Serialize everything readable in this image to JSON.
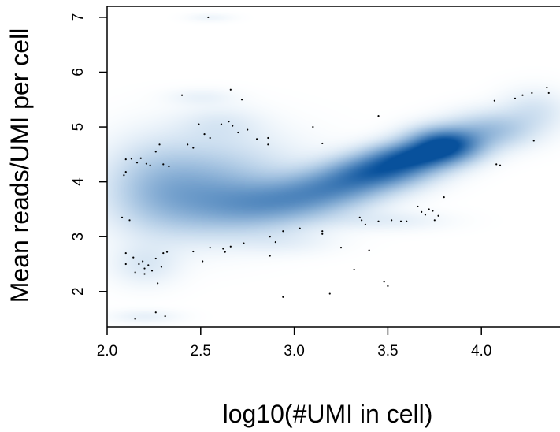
{
  "chart_data": {
    "type": "scatter",
    "title": "",
    "xlabel": "log10(#UMI in cell)",
    "ylabel": "Mean reads/UMI per cell",
    "xlim": [
      2.0,
      4.42
    ],
    "ylim": [
      1.35,
      7.2
    ],
    "x_ticks": [
      "2.0",
      "2.5",
      "3.0",
      "3.5",
      "4.0"
    ],
    "y_ticks": [
      "2",
      "3",
      "4",
      "5",
      "6",
      "7"
    ],
    "density_color": "#08519c",
    "point_color": "#000000",
    "density_kernels": [
      {
        "x": 3.8,
        "y": 4.68,
        "w": 1.0,
        "sx": 0.13,
        "sy": 0.2
      },
      {
        "x": 3.62,
        "y": 4.45,
        "w": 0.75,
        "sx": 0.15,
        "sy": 0.18
      },
      {
        "x": 3.45,
        "y": 4.2,
        "w": 0.7,
        "sx": 0.17,
        "sy": 0.2
      },
      {
        "x": 3.25,
        "y": 3.95,
        "w": 0.45,
        "sx": 0.18,
        "sy": 0.22
      },
      {
        "x": 3.05,
        "y": 3.7,
        "w": 0.35,
        "sx": 0.2,
        "sy": 0.25
      },
      {
        "x": 2.8,
        "y": 3.55,
        "w": 0.3,
        "sx": 0.22,
        "sy": 0.3
      },
      {
        "x": 2.5,
        "y": 3.7,
        "w": 0.33,
        "sx": 0.25,
        "sy": 0.45
      },
      {
        "x": 2.25,
        "y": 3.9,
        "w": 0.18,
        "sx": 0.18,
        "sy": 0.55
      },
      {
        "x": 2.6,
        "y": 4.3,
        "w": 0.14,
        "sx": 0.3,
        "sy": 0.45
      },
      {
        "x": 4.05,
        "y": 4.95,
        "w": 0.3,
        "sx": 0.15,
        "sy": 0.22
      },
      {
        "x": 4.28,
        "y": 5.3,
        "w": 0.12,
        "sx": 0.12,
        "sy": 0.25
      },
      {
        "x": 2.6,
        "y": 5.05,
        "w": 0.08,
        "sx": 0.15,
        "sy": 0.22
      },
      {
        "x": 2.5,
        "y": 5.55,
        "w": 0.05,
        "sx": 0.12,
        "sy": 0.1
      },
      {
        "x": 2.2,
        "y": 2.5,
        "w": 0.1,
        "sx": 0.12,
        "sy": 0.25
      },
      {
        "x": 2.2,
        "y": 1.55,
        "w": 0.06,
        "sx": 0.12,
        "sy": 0.08
      },
      {
        "x": 2.55,
        "y": 7.0,
        "w": 0.04,
        "sx": 0.08,
        "sy": 0.05
      },
      {
        "x": 3.5,
        "y": 3.3,
        "w": 0.07,
        "sx": 0.2,
        "sy": 0.12
      },
      {
        "x": 2.95,
        "y": 2.9,
        "w": 0.05,
        "sx": 0.18,
        "sy": 0.15
      }
    ],
    "points": [
      [
        2.54,
        7.0
      ],
      [
        2.66,
        5.68
      ],
      [
        2.72,
        5.5
      ],
      [
        2.4,
        5.58
      ],
      [
        2.49,
        5.05
      ],
      [
        2.52,
        4.87
      ],
      [
        2.55,
        4.8
      ],
      [
        2.61,
        5.05
      ],
      [
        2.65,
        5.1
      ],
      [
        2.67,
        5.02
      ],
      [
        2.75,
        4.95
      ],
      [
        2.7,
        4.9
      ],
      [
        2.8,
        4.78
      ],
      [
        2.86,
        4.8
      ],
      [
        2.86,
        4.68
      ],
      [
        2.43,
        4.68
      ],
      [
        2.46,
        4.62
      ],
      [
        2.28,
        4.68
      ],
      [
        2.26,
        4.55
      ],
      [
        2.13,
        4.42
      ],
      [
        2.18,
        4.43
      ],
      [
        2.21,
        4.33
      ],
      [
        2.16,
        4.35
      ],
      [
        2.23,
        4.3
      ],
      [
        2.1,
        4.41
      ],
      [
        2.1,
        4.18
      ],
      [
        2.09,
        4.12
      ],
      [
        2.3,
        4.32
      ],
      [
        2.33,
        4.28
      ],
      [
        2.08,
        3.35
      ],
      [
        2.12,
        3.3
      ],
      [
        2.1,
        2.7
      ],
      [
        2.14,
        2.62
      ],
      [
        2.19,
        2.55
      ],
      [
        2.17,
        2.5
      ],
      [
        2.22,
        2.48
      ],
      [
        2.2,
        2.42
      ],
      [
        2.24,
        2.38
      ],
      [
        2.26,
        2.6
      ],
      [
        2.3,
        2.7
      ],
      [
        2.32,
        2.72
      ],
      [
        2.29,
        2.45
      ],
      [
        2.27,
        2.15
      ],
      [
        2.1,
        2.5
      ],
      [
        2.15,
        2.35
      ],
      [
        2.2,
        2.32
      ],
      [
        2.46,
        2.73
      ],
      [
        2.51,
        2.55
      ],
      [
        2.55,
        2.8
      ],
      [
        2.62,
        2.78
      ],
      [
        2.63,
        2.72
      ],
      [
        2.66,
        2.82
      ],
      [
        2.73,
        2.88
      ],
      [
        2.87,
        3.0
      ],
      [
        2.9,
        2.9
      ],
      [
        2.87,
        2.65
      ],
      [
        2.94,
        3.1
      ],
      [
        2.94,
        1.9
      ],
      [
        3.03,
        3.15
      ],
      [
        3.15,
        3.1
      ],
      [
        3.15,
        3.05
      ],
      [
        3.19,
        1.96
      ],
      [
        3.25,
        2.8
      ],
      [
        3.32,
        2.4
      ],
      [
        3.35,
        3.35
      ],
      [
        3.36,
        3.3
      ],
      [
        3.38,
        3.22
      ],
      [
        3.4,
        2.75
      ],
      [
        3.45,
        3.28
      ],
      [
        3.48,
        2.18
      ],
      [
        3.5,
        2.1
      ],
      [
        3.52,
        3.3
      ],
      [
        3.57,
        3.28
      ],
      [
        3.6,
        3.28
      ],
      [
        3.66,
        3.55
      ],
      [
        3.68,
        3.45
      ],
      [
        3.7,
        3.4
      ],
      [
        3.72,
        3.5
      ],
      [
        3.74,
        3.47
      ],
      [
        3.75,
        3.3
      ],
      [
        3.77,
        3.38
      ],
      [
        3.8,
        3.72
      ],
      [
        3.1,
        5.0
      ],
      [
        3.15,
        4.7
      ],
      [
        3.45,
        5.2
      ],
      [
        4.07,
        5.48
      ],
      [
        4.08,
        4.32
      ],
      [
        4.1,
        4.3
      ],
      [
        4.18,
        5.52
      ],
      [
        4.22,
        5.58
      ],
      [
        4.27,
        5.62
      ],
      [
        4.28,
        4.75
      ],
      [
        4.35,
        5.72
      ],
      [
        4.36,
        5.62
      ],
      [
        2.15,
        1.5
      ],
      [
        2.26,
        1.62
      ],
      [
        2.31,
        1.55
      ]
    ]
  }
}
